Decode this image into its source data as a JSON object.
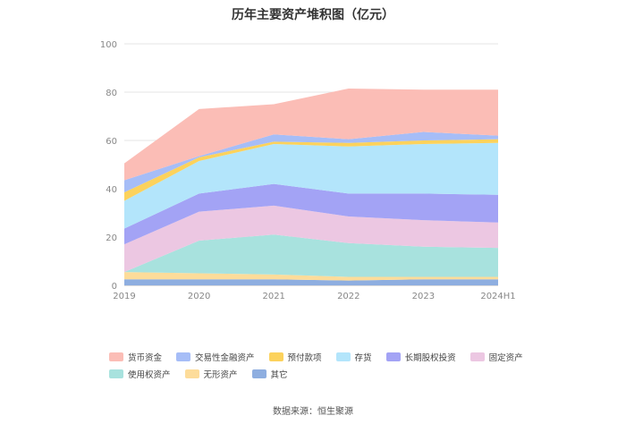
{
  "chart_data": {
    "type": "area",
    "stacked": true,
    "title": "历年主要资产堆积图（亿元）",
    "source": "数据来源：恒生聚源",
    "x": [
      "2019",
      "2020",
      "2021",
      "2022",
      "2023",
      "2024H1"
    ],
    "ylim": [
      0,
      100
    ],
    "yticks": [
      "0",
      "20",
      "40",
      "60",
      "80",
      "100"
    ],
    "grid": true,
    "legend_position": "bottom",
    "series": [
      {
        "name": "其它",
        "color": "#8eaee0",
        "values": [
          2.5,
          2.5,
          2.5,
          2.0,
          2.5,
          2.5
        ]
      },
      {
        "name": "无形资产",
        "color": "#fddc9a",
        "values": [
          3.0,
          2.5,
          2.0,
          1.5,
          1.0,
          1.0
        ]
      },
      {
        "name": "使用权资产",
        "color": "#a8e2de",
        "values": [
          0.0,
          13.5,
          16.5,
          14.0,
          12.5,
          12.0
        ]
      },
      {
        "name": "固定资产",
        "color": "#ecc7e2",
        "values": [
          11.5,
          12.0,
          12.0,
          11.0,
          11.0,
          10.5
        ]
      },
      {
        "name": "长期股权投资",
        "color": "#a3a3f5",
        "values": [
          6.5,
          7.5,
          9.0,
          9.5,
          11.0,
          11.5
        ]
      },
      {
        "name": "存货",
        "color": "#b3e5fb",
        "values": [
          11.5,
          13.5,
          16.5,
          19.5,
          20.5,
          21.5
        ]
      },
      {
        "name": "预付款项",
        "color": "#fcd25c",
        "values": [
          3.5,
          1.5,
          1.0,
          1.5,
          1.5,
          1.5
        ]
      },
      {
        "name": "交易性金融资产",
        "color": "#a6bdf7",
        "values": [
          5.0,
          0.5,
          3.0,
          1.5,
          3.5,
          1.5
        ]
      },
      {
        "name": "货币资金",
        "color": "#fbbdb6",
        "values": [
          7.0,
          19.5,
          12.5,
          21.0,
          17.5,
          19.0
        ]
      }
    ],
    "legend_order": [
      "货币资金",
      "交易性金融资产",
      "预付款项",
      "存货",
      "长期股权投资",
      "固定资产",
      "使用权资产",
      "无形资产",
      "其它"
    ]
  }
}
